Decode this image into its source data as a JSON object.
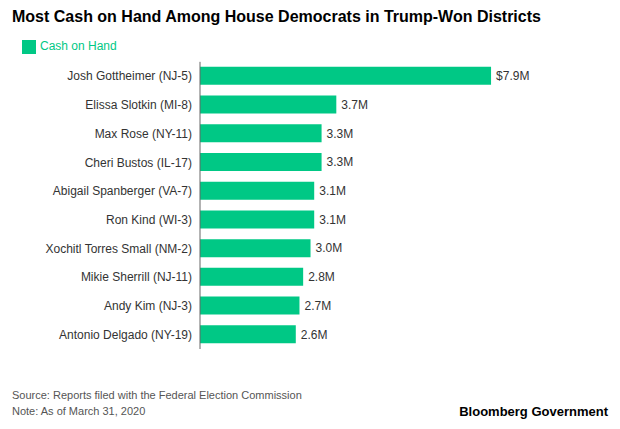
{
  "chart_data": {
    "type": "bar",
    "orientation": "horizontal",
    "title": "Most Cash on Hand Among House Democrats in Trump-Won Districts",
    "categories": [
      "Antonio Delgado (NY-19)",
      "Andy Kim (NJ-3)",
      "Mikie Sherrill (NJ-11)",
      "Xochitl Torres Small (NM-2)",
      "Ron Kind (WI-3)",
      "Abigail Spanberger (VA-7)",
      "Cheri Bustos (IL-17)",
      "Max Rose (NY-11)",
      "Elissa Slotkin (MI-8)",
      "Josh Gottheimer (NJ-5)"
    ],
    "series": [
      {
        "name": "Cash on Hand",
        "color": "#00C885",
        "values": [
          2.6,
          2.7,
          2.8,
          3.0,
          3.1,
          3.1,
          3.3,
          3.3,
          3.7,
          7.9
        ],
        "value_labels": [
          "2.6M",
          "2.7M",
          "2.8M",
          "3.0M",
          "3.1M",
          "3.1M",
          "3.3M",
          "3.3M",
          "3.7M",
          "$7.9M"
        ]
      }
    ],
    "xlim": [
      0,
      9.5
    ],
    "data_labels": true,
    "tick_labels": "y",
    "legend": "top",
    "annotations": [
      "Source: Reports filed with the Federal Election Commission",
      "Note: As of March 31, 2020",
      "Bloomberg Government"
    ]
  }
}
